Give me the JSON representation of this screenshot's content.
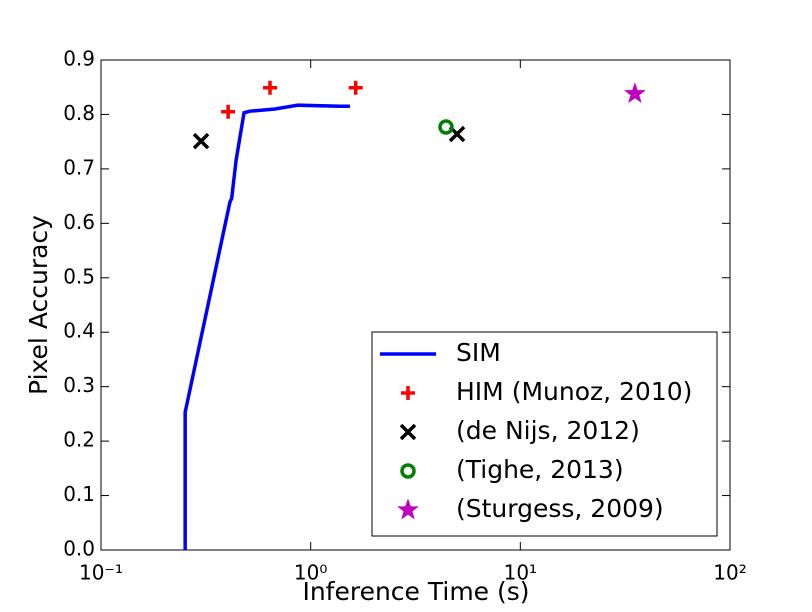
{
  "chart_data": {
    "type": "line",
    "x_label": "Inference Time (s)",
    "y_label": "Pixel Accuracy",
    "xscale": "log",
    "xlim": [
      0.1,
      100
    ],
    "xticks": [
      {
        "value": 0.1,
        "label": "10⁻¹"
      },
      {
        "value": 1,
        "label": "10⁰"
      },
      {
        "value": 10,
        "label": "10¹"
      },
      {
        "value": 100,
        "label": "10²"
      }
    ],
    "ylim": [
      0,
      0.9
    ],
    "yticks": [
      {
        "value": 0,
        "label": "0.0"
      },
      0.1,
      0.2,
      0.3,
      0.4,
      0.5,
      0.6,
      0.7,
      0.8,
      0.9
    ],
    "legend": "lower right",
    "series": [
      {
        "name": "SIM",
        "color": "#0000ff",
        "marker": "line",
        "x": [
          0.252,
          0.252,
          0.412,
          0.42,
          0.441,
          0.481,
          0.513,
          0.676,
          0.87,
          1.38,
          1.54
        ],
        "values": [
          0,
          0.253,
          0.639,
          0.646,
          0.716,
          0.803,
          0.806,
          0.81,
          0.817,
          0.815,
          0.815
        ]
      },
      {
        "name": "HIM (Munoz, 2010)",
        "color": "#ff0000",
        "marker": "plus",
        "x": [
          0.404,
          0.64,
          1.64
        ],
        "values": [
          0.805,
          0.849,
          0.849
        ]
      },
      {
        "name": "(de Nijs, 2012)",
        "color": "#000000",
        "marker": "x",
        "x": [
          0.3,
          4.99
        ],
        "values": [
          0.751,
          0.764
        ]
      },
      {
        "name": "(Tighe, 2013)",
        "color": "#008000",
        "marker": "circle",
        "x": [
          4.42
        ],
        "values": [
          0.777
        ]
      },
      {
        "name": "(Sturgess, 2009)",
        "color": "#bf00bf",
        "marker": "star",
        "x": [
          35.2
        ],
        "values": [
          0.838
        ]
      }
    ]
  }
}
